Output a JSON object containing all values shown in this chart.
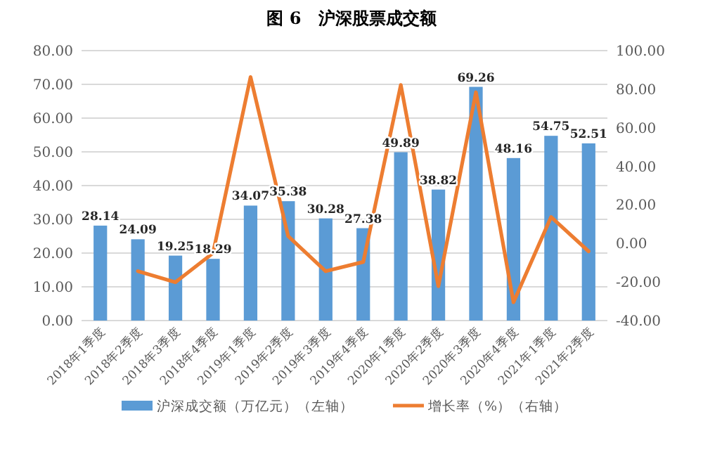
{
  "chart_data": {
    "type": "bar",
    "title": "图 6　沪深股票成交额",
    "categories": [
      "2018年1季度",
      "2018年2季度",
      "2018年3季度",
      "2018年4季度",
      "2019年1季度",
      "2019年2季度",
      "2019年3季度",
      "2019年4季度",
      "2020年1季度",
      "2020年2季度",
      "2020年3季度",
      "2020年4季度",
      "2021年1季度",
      "2021年2季度"
    ],
    "series": [
      {
        "name": "沪深成交额（万亿元）（左轴）",
        "color": "#5b9bd5",
        "values": [
          28.14,
          24.09,
          19.25,
          18.29,
          34.07,
          35.38,
          30.28,
          27.38,
          49.89,
          38.82,
          69.26,
          48.16,
          54.75,
          52.51
        ],
        "value_labels": [
          "28.14",
          "24.09",
          "19.25",
          "18.29",
          "34.07",
          "35.38",
          "30.28",
          "27.38",
          "49.89",
          "38.82",
          "69.26",
          "48.16",
          "54.75",
          "52.51"
        ]
      },
      {
        "name": "增长率（%）（右轴）",
        "type": "line",
        "axis": "y2",
        "color": "#ed7d31",
        "values": [
          null,
          -14.4,
          -20.1,
          -5.0,
          86.3,
          3.8,
          -14.4,
          -9.6,
          82.2,
          -22.2,
          78.4,
          -30.5,
          13.7,
          -4.1
        ]
      }
    ],
    "ylim": [
      0,
      80
    ],
    "yticks": [
      {
        "value": 0,
        "label": "0.00"
      },
      {
        "value": 10,
        "label": "10.00"
      },
      {
        "value": 20,
        "label": "20.00"
      },
      {
        "value": 30,
        "label": "30.00"
      },
      {
        "value": 40,
        "label": "40.00"
      },
      {
        "value": 50,
        "label": "50.00"
      },
      {
        "value": 60,
        "label": "60.00"
      },
      {
        "value": 70,
        "label": "70.00"
      },
      {
        "value": 80,
        "label": "80.00"
      }
    ],
    "y2lim": [
      -40,
      100
    ],
    "y2ticks": [
      {
        "value": -40,
        "label": "-40.00"
      },
      {
        "value": -20,
        "label": "-20.00"
      },
      {
        "value": 0,
        "label": "0.00"
      },
      {
        "value": 20,
        "label": "20.00"
      },
      {
        "value": 40,
        "label": "40.00"
      },
      {
        "value": 60,
        "label": "60.00"
      },
      {
        "value": 80,
        "label": "80.00"
      },
      {
        "value": 100,
        "label": "100.00"
      }
    ],
    "grid": "y",
    "legend": "bottom"
  }
}
